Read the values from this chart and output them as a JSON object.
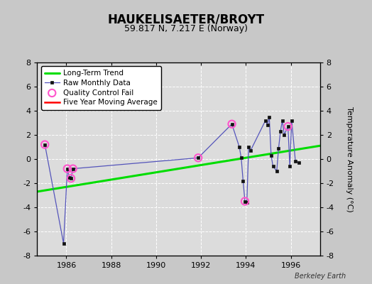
{
  "title": "HAUKELISAETER/BROYT",
  "subtitle": "59.817 N, 7.217 E (Norway)",
  "ylabel": "Temperature Anomaly (°C)",
  "attribution": "Berkeley Earth",
  "ylim": [
    -8,
    8
  ],
  "xlim": [
    1984.7,
    1997.3
  ],
  "yticks": [
    -8,
    -6,
    -4,
    -2,
    0,
    2,
    4,
    6,
    8
  ],
  "xticks": [
    1986,
    1988,
    1990,
    1992,
    1994,
    1996
  ],
  "bg_color": "#c8c8c8",
  "plot_bg_color": "#dcdcdc",
  "raw_x": [
    1985.042,
    1985.875,
    1986.042,
    1986.125,
    1986.208,
    1986.292,
    1991.875,
    1993.375,
    1993.708,
    1993.792,
    1993.875,
    1993.958,
    1994.042,
    1994.125,
    1994.208,
    1994.875,
    1994.958,
    1995.042,
    1995.125,
    1995.208,
    1995.375,
    1995.458,
    1995.542,
    1995.625,
    1995.708,
    1995.875,
    1995.958,
    1996.042,
    1996.208,
    1996.375
  ],
  "raw_y": [
    1.2,
    -7.0,
    -0.8,
    -1.5,
    -1.6,
    -0.8,
    0.1,
    2.9,
    1.0,
    0.1,
    -1.8,
    -3.5,
    -3.6,
    1.0,
    0.7,
    3.2,
    2.8,
    3.5,
    0.3,
    -0.6,
    -1.0,
    0.9,
    2.3,
    3.2,
    2.0,
    2.7,
    -0.6,
    3.2,
    -0.2,
    -0.3
  ],
  "qc_fail_x": [
    1985.042,
    1986.042,
    1986.208,
    1986.292,
    1991.875,
    1993.375,
    1993.958,
    1995.875
  ],
  "qc_fail_y": [
    1.2,
    -0.8,
    -1.6,
    -0.8,
    0.1,
    2.9,
    -3.5,
    2.7
  ],
  "trend_x": [
    1984.7,
    1997.3
  ],
  "trend_y": [
    -2.7,
    1.1
  ],
  "raw_line_color": "#5555bb",
  "raw_marker_color": "#111111",
  "qc_color": "#ff55cc",
  "trend_color": "#00dd00",
  "ma_color": "red",
  "grid_color": "#ffffff",
  "title_fontsize": 12,
  "subtitle_fontsize": 9,
  "tick_fontsize": 8,
  "ylabel_fontsize": 8
}
